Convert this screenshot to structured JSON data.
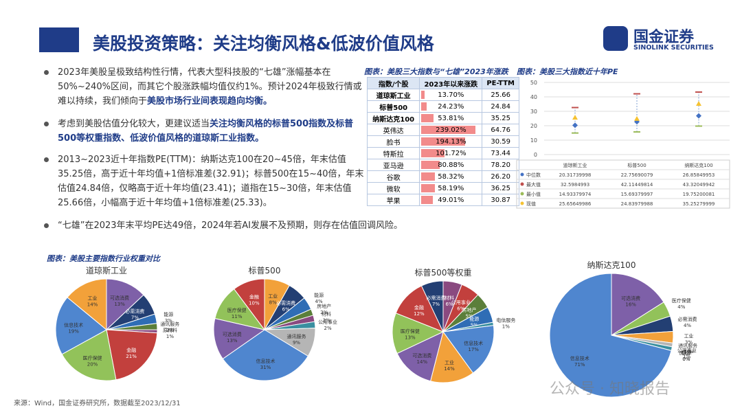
{
  "header": {
    "title": "美股投资策略：关注均衡风格&低波价值风格",
    "logo_cn": "国金证券",
    "logo_en": "SINOLINK SECURITIES"
  },
  "bullets": [
    [
      {
        "text": "2023年美股呈极致结构性行情，代表大型科技股的“七雄”涨幅基本在50%~240%区间，而其它个股涨跌幅均值仅约1%。预计2024年极致行情或难以持续，我们倾向于"
      },
      {
        "text": "美股市场行业间表现趋向均衡。",
        "bold": true
      }
    ],
    [
      {
        "text": "考虑到美股估值分化较大，更建议适当"
      },
      {
        "text": "关注均衡风格的标普500指数及标普500等权重指数、低波价值风格的道琼斯工业指数。",
        "bold": true
      }
    ],
    [
      {
        "text": "2013~2023近十年指数PE(TTM)：纳斯达克100在20~45倍，年末估值35.25倍，高于近十年均值+1倍标准差(32.91)；标普500在15~40倍，年末估值24.84倍，仅略高于近十年均值(23.41)；道指在15~30倍，年末估值25.66倍，小幅高于近十年均值+1倍标准差(25.33)。"
      }
    ],
    [
      {
        "text": "“七雄”在2023年末平均PE达49倍，2024年若AI发展不及预期，则存在估值回调风险。"
      }
    ]
  ],
  "table": {
    "title": "图表：美股三大指数与“七雄”2023年涨跌",
    "headers": [
      "指数/个股",
      "2023年以来涨跌",
      "PE-TTM"
    ],
    "bar_color": "#f28b8b",
    "rows": [
      {
        "name": "道琼斯工业",
        "value": 13.7,
        "label": "13.70%",
        "pe": "25.66",
        "bold": true
      },
      {
        "name": "标普500",
        "value": 24.23,
        "label": "24.23%",
        "pe": "24.84",
        "bold": true
      },
      {
        "name": "纳斯达克100",
        "value": 53.81,
        "label": "53.81%",
        "pe": "35.25",
        "bold": true
      },
      {
        "name": "英伟达",
        "value": 239.02,
        "label": "239.02%",
        "pe": "64.76"
      },
      {
        "name": "脸书",
        "value": 194.13,
        "label": "194.13%",
        "pe": "30.59"
      },
      {
        "name": "特斯拉",
        "value": 101.72,
        "label": "101.72%",
        "pe": "73.44"
      },
      {
        "name": "亚马逊",
        "value": 80.88,
        "label": "80.88%",
        "pe": "78.20"
      },
      {
        "name": "谷歌",
        "value": 58.32,
        "label": "58.32%",
        "pe": "26.20"
      },
      {
        "name": "微软",
        "value": 58.19,
        "label": "58.19%",
        "pe": "36.25"
      },
      {
        "name": "苹果",
        "value": 49.01,
        "label": "49.01%",
        "pe": "30.87"
      }
    ]
  },
  "pe_chart": {
    "type": "errorbar",
    "title": "图表：美股三大指数近十年PE",
    "categories": [
      "道琼斯工业",
      "标普500",
      "纳斯达克100"
    ],
    "ylim": [
      0,
      50
    ],
    "yticks": [
      0,
      10,
      20,
      30,
      40,
      50
    ],
    "grid": true,
    "series": [
      {
        "name": "中位数",
        "color": "#4472c4",
        "values": [
          20.31739998,
          22.75690079,
          26.85849953
        ]
      },
      {
        "name": "最大值",
        "color": "#c0504d",
        "values": [
          32.5984993,
          42.11449814,
          43.32049942
        ]
      },
      {
        "name": "最小值",
        "color": "#9bbb59",
        "values": [
          14.93379974,
          15.69379997,
          19.75200081
        ]
      },
      {
        "name": "现值",
        "color": "#f5c232",
        "values": [
          25.65649986,
          24.83979988,
          35.25279999
        ]
      }
    ]
  },
  "pies": {
    "title": "图表：美股主要指数行业权重对比",
    "charts": [
      {
        "title": "道琼斯工业",
        "slices": [
          {
            "name": "可选消费",
            "value": 13,
            "label": "13%",
            "color": "#7e60a8"
          },
          {
            "name": "必需消费",
            "value": 7,
            "label": "7%",
            "color": "#233f73"
          },
          {
            "name": "能源",
            "value": 3,
            "label": "3%",
            "color": "#2f6db5"
          },
          {
            "name": "通讯服务",
            "value": 2,
            "label": "2%",
            "color": "#5b7f3a"
          },
          {
            "name": "原材料",
            "value": 1,
            "label": "1%",
            "color": "#8a4a80"
          },
          {
            "name": "金融",
            "value": 21,
            "label": "21%",
            "color": "#c2403d"
          },
          {
            "name": "医疗保健",
            "value": 20,
            "label": "20%",
            "color": "#92c25a"
          },
          {
            "name": "信息技术",
            "value": 19,
            "label": "19%",
            "color": "#4f86cf"
          },
          {
            "name": "工业",
            "value": 14,
            "label": "14%",
            "color": "#f2a13a"
          }
        ]
      },
      {
        "title": "标普500",
        "slices": [
          {
            "name": "工业",
            "value": 8,
            "label": "8%",
            "color": "#f2a13a"
          },
          {
            "name": "必需消费",
            "value": 6,
            "label": "6%",
            "color": "#233f73"
          },
          {
            "name": "能源",
            "value": 4,
            "label": "4%",
            "color": "#2f6db5"
          },
          {
            "name": "房地产",
            "value": 2,
            "label": "2%",
            "color": "#5b7f3a"
          },
          {
            "name": "材料",
            "value": 2,
            "label": "2%",
            "color": "#8a4a80"
          },
          {
            "name": "公用事业",
            "value": 2,
            "label": "2%",
            "color": "#3a8fa0"
          },
          {
            "name": "通讯服务",
            "value": 9,
            "label": "9%",
            "color": "#b5b5b5"
          },
          {
            "name": "信息技术",
            "value": 31,
            "label": "31%",
            "color": "#4f86cf"
          },
          {
            "name": "可选消费",
            "value": 13,
            "label": "13%",
            "color": "#7e60a8"
          },
          {
            "name": "医疗保健",
            "value": 11,
            "label": "11%",
            "color": "#92c25a"
          },
          {
            "name": "金融",
            "value": 10,
            "label": "10%",
            "color": "#c2403d"
          }
        ]
      },
      {
        "title": "标普500等权重",
        "slices": [
          {
            "name": "材料",
            "value": 6,
            "label": "6%",
            "color": "#8a4a80"
          },
          {
            "name": "公用事业",
            "value": 6,
            "label": "6%",
            "color": "#c2403d"
          },
          {
            "name": "房地产",
            "value": 5,
            "label": "5%",
            "color": "#5b7f3a"
          },
          {
            "name": "能源",
            "value": 5,
            "label": "5%",
            "color": "#2f6db5"
          },
          {
            "name": "电信服务",
            "value": 1,
            "label": "1%",
            "color": "#3a8fa0"
          },
          {
            "name": "信息技术",
            "value": 17,
            "label": "17%",
            "color": "#4f86cf"
          },
          {
            "name": "工业",
            "value": 14,
            "label": "14%",
            "color": "#f2a13a"
          },
          {
            "name": "可选消费",
            "value": 14,
            "label": "14%",
            "color": "#7e60a8"
          },
          {
            "name": "医疗保健",
            "value": 13,
            "label": "13%",
            "color": "#92c25a"
          },
          {
            "name": "金融",
            "value": 12,
            "label": "12%",
            "color": "#c2403d"
          },
          {
            "name": "必需消费",
            "value": 7,
            "label": "7%",
            "color": "#233f73"
          }
        ]
      },
      {
        "title": "纳斯达克100",
        "slices": [
          {
            "name": "可选消费",
            "value": 16,
            "label": "16%",
            "color": "#7e60a8"
          },
          {
            "name": "医疗保健",
            "value": 4,
            "label": "4%",
            "color": "#92c25a"
          },
          {
            "name": "必需消费",
            "value": 4,
            "label": "4%",
            "color": "#233f73"
          },
          {
            "name": "工业",
            "value": 3,
            "label": "3%",
            "color": "#f2a13a"
          },
          {
            "name": "通讯服务",
            "value": 1,
            "label": "1%",
            "color": "#b5b5b5"
          },
          {
            "name": "公用事业",
            "value": 1,
            "label": "1%",
            "color": "#3a8fa0"
          },
          {
            "name": "房地产",
            "value": 0,
            "label": "0%",
            "color": "#5b7f3a"
          },
          {
            "name": "能源",
            "value": 0,
            "label": "0%",
            "color": "#2f6db5"
          },
          {
            "name": "信息技术",
            "value": 71,
            "label": "71%",
            "color": "#4f86cf"
          }
        ]
      }
    ]
  },
  "source": "来源：Wind，国金证券研究所，数据截至2023/12/31",
  "watermark": "公众号 · 知晓报告"
}
